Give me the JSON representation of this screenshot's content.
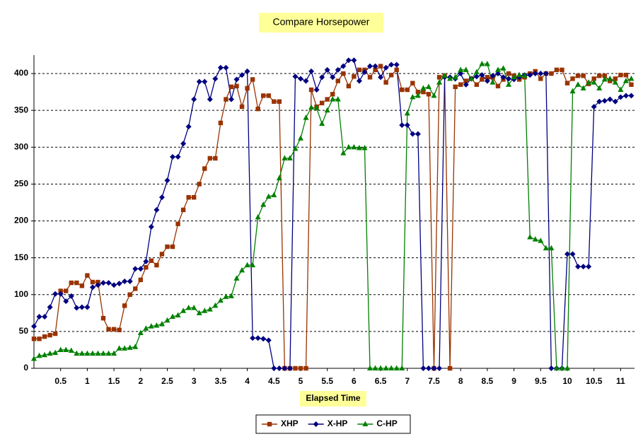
{
  "chart_data": {
    "type": "line",
    "title": "Compare Horsepower",
    "x_label": "Elapsed Time",
    "x": [
      0,
      0.1,
      0.2,
      0.3,
      0.4,
      0.5,
      0.6,
      0.7,
      0.8,
      0.9,
      1,
      1.1,
      1.2,
      1.3,
      1.4,
      1.5,
      1.6,
      1.7,
      1.8,
      1.9,
      2,
      2.1,
      2.2,
      2.3,
      2.4,
      2.5,
      2.6,
      2.7,
      2.8,
      2.9,
      3,
      3.1,
      3.2,
      3.3,
      3.4,
      3.5,
      3.6,
      3.7,
      3.8,
      3.9,
      4,
      4.1,
      4.2,
      4.3,
      4.4,
      4.5,
      4.6,
      4.7,
      4.8,
      4.9,
      5,
      5.1,
      5.2,
      5.3,
      5.4,
      5.5,
      5.6,
      5.7,
      5.8,
      5.9,
      6,
      6.1,
      6.2,
      6.3,
      6.4,
      6.5,
      6.6,
      6.7,
      6.8,
      6.9,
      7,
      7.1,
      7.2,
      7.3,
      7.4,
      7.5,
      7.6,
      7.7,
      7.8,
      7.9,
      8,
      8.1,
      8.2,
      8.3,
      8.4,
      8.5,
      8.6,
      8.7,
      8.8,
      8.9,
      9,
      9.1,
      9.2,
      9.3,
      9.4,
      9.5,
      9.6,
      9.7,
      9.8,
      9.9,
      10,
      10.1,
      10.2,
      10.3,
      10.4,
      10.5,
      10.6,
      10.7,
      10.8,
      10.9,
      11,
      11.1,
      11.2
    ],
    "series": [
      {
        "name": "XHP",
        "color": "#993300",
        "marker": "square",
        "values": [
          40,
          40,
          43,
          45,
          47,
          105,
          105,
          116,
          116,
          112,
          126,
          117,
          117,
          68,
          53,
          53,
          52,
          85,
          100,
          108,
          120,
          137,
          146,
          140,
          155,
          165,
          165,
          196,
          215,
          232,
          232,
          250,
          271,
          285,
          285,
          333,
          365,
          382,
          383,
          355,
          380,
          392,
          352,
          370,
          370,
          362,
          362,
          0,
          0,
          0,
          0,
          0,
          378,
          355,
          360,
          365,
          372,
          390,
          400,
          383,
          396,
          405,
          405,
          395,
          405,
          410,
          388,
          398,
          405,
          378,
          378,
          387,
          375,
          375,
          372,
          0,
          395,
          397,
          0,
          382,
          385,
          390,
          393,
          385,
          392,
          395,
          395,
          383,
          392,
          400,
          397,
          392,
          395,
          400,
          403,
          393,
          400,
          400,
          405,
          405,
          387,
          393,
          397,
          397,
          386,
          393,
          397,
          397,
          390,
          393,
          398,
          398,
          385
        ]
      },
      {
        "name": "X-HP",
        "color": "#000080",
        "marker": "diamond",
        "values": [
          57,
          70,
          70,
          83,
          101,
          101,
          91,
          98,
          82,
          83,
          83,
          110,
          113,
          116,
          116,
          113,
          115,
          118,
          118,
          135,
          135,
          145,
          192,
          215,
          232,
          255,
          287,
          287,
          305,
          328,
          365,
          389,
          389,
          365,
          393,
          408,
          408,
          365,
          392,
          398,
          403,
          41,
          41,
          40,
          38,
          0,
          0,
          0,
          0,
          396,
          393,
          390,
          403,
          378,
          395,
          405,
          395,
          405,
          410,
          418,
          418,
          390,
          402,
          410,
          410,
          395,
          408,
          412,
          412,
          330,
          330,
          318,
          318,
          0,
          0,
          0,
          0,
          395,
          395,
          393,
          400,
          385,
          393,
          396,
          398,
          390,
          397,
          400,
          395,
          393,
          392,
          395,
          398,
          398,
          400,
          400,
          400,
          0,
          0,
          0,
          155,
          155,
          138,
          138,
          138,
          355,
          362,
          363,
          365,
          362,
          368,
          370,
          370
        ]
      },
      {
        "name": "C-HP",
        "color": "#008000",
        "marker": "triangle",
        "values": [
          13,
          17,
          18,
          20,
          21,
          25,
          25,
          24,
          20,
          20,
          20,
          20,
          20,
          20,
          20,
          20,
          27,
          27,
          28,
          29,
          48,
          54,
          57,
          58,
          60,
          65,
          70,
          72,
          78,
          82,
          82,
          75,
          78,
          80,
          85,
          92,
          97,
          98,
          122,
          133,
          140,
          140,
          205,
          222,
          233,
          235,
          258,
          285,
          285,
          298,
          312,
          340,
          354,
          353,
          332,
          350,
          365,
          365,
          292,
          300,
          300,
          299,
          299,
          0,
          0,
          0,
          0,
          0,
          0,
          0,
          346,
          368,
          370,
          380,
          382,
          370,
          388,
          397,
          393,
          395,
          405,
          405,
          393,
          402,
          413,
          413,
          388,
          405,
          407,
          385,
          395,
          398,
          397,
          178,
          175,
          173,
          163,
          163,
          0,
          0,
          0,
          376,
          385,
          380,
          388,
          388,
          380,
          392,
          393,
          388,
          378,
          390,
          393
        ]
      }
    ],
    "xlim": [
      0,
      11.26
    ],
    "xticks": [
      0.5,
      1,
      1.5,
      2,
      2.5,
      3,
      3.5,
      4,
      4.5,
      5,
      5.5,
      6,
      6.5,
      7,
      7.5,
      8,
      8.5,
      9,
      9.5,
      10,
      10.5,
      11
    ],
    "ylim": [
      0,
      425
    ],
    "yticks": [
      0,
      50,
      100,
      150,
      200,
      250,
      300,
      350,
      400
    ],
    "grid": true,
    "legend": "bottom"
  }
}
